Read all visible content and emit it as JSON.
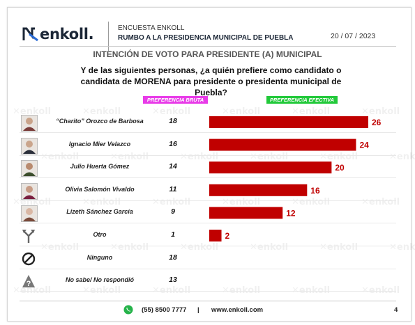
{
  "header": {
    "brand": "enkoll.",
    "survey_label": "ENCUESTA ENKOLL",
    "survey_title": "RUMBO A LA PRESIDENCIA MUNICIPAL DE PUEBLA",
    "date": "20 / 07 / 2023"
  },
  "section_title": "INTENCIÓN DE VOTO PARA PRESIDENTE (A) MUNICIPAL",
  "question": "Y de las siguientes personas, ¿a quién prefiere como candidato o candidata de MORENA para presidente o presidenta municipal de Puebla?",
  "column_labels": {
    "bruta": "PREFERENCIA BRUTA",
    "efectiva": "PREFERENCIA EFECTIVA"
  },
  "watermark_text": "enkoll",
  "colors": {
    "bar": "#c00000",
    "bar_label": "#c00000",
    "badge_bruta": "#e83be8",
    "badge_efectiva": "#22c93a"
  },
  "chart_data": {
    "type": "bar",
    "orientation": "horizontal",
    "categories": [
      "“Charito” Orozco de Barbosa",
      "Ignacio Mier Velazco",
      "Julio Huerta Gómez",
      "Olivia Salomón Vivaldo",
      "Lizeth Sánchez García",
      "Otro",
      "Ninguno",
      "No sabe/ No respondió"
    ],
    "series": [
      {
        "name": "PREFERENCIA BRUTA",
        "values": [
          18,
          16,
          14,
          11,
          9,
          1,
          18,
          13
        ]
      },
      {
        "name": "PREFERENCIA EFECTIVA",
        "values": [
          26,
          24,
          20,
          16,
          12,
          2,
          null,
          null
        ]
      }
    ],
    "row_icons": [
      "avatar",
      "avatar",
      "avatar",
      "avatar",
      "avatar",
      "arrows-split-icon",
      "prohibited-icon",
      "question-mark-icon"
    ]
  },
  "footer": {
    "phone": "(55) 8500 7777",
    "separator": "|",
    "website": "www.enkoll.com",
    "page_number": "4"
  }
}
